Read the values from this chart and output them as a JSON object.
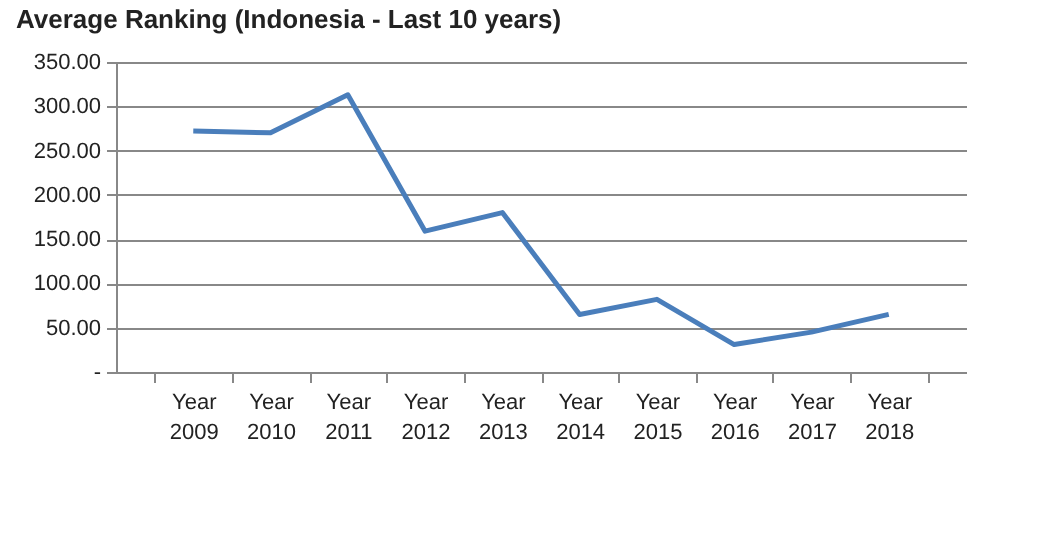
{
  "chart_data": {
    "type": "line",
    "title": "Average Ranking (Indonesia - Last 10 years)",
    "categories": [
      "Year 2009",
      "Year 2010",
      "Year 2011",
      "Year 2012",
      "Year 2013",
      "Year 2014",
      "Year 2015",
      "Year 2016",
      "Year 2017",
      "Year 2018"
    ],
    "series": [
      {
        "color": "#4a7ebb",
        "values": [
          272,
          270,
          313,
          159,
          180,
          65,
          82,
          31,
          45,
          65
        ]
      }
    ],
    "ylim": [
      0,
      350
    ],
    "yticks": [
      {
        "value": 0,
        "label": "-"
      },
      {
        "value": 50,
        "label": "50.00"
      },
      {
        "value": 100,
        "label": "100.00"
      },
      {
        "value": 150,
        "label": "150.00"
      },
      {
        "value": 200,
        "label": "200.00"
      },
      {
        "value": 250,
        "label": "250.00"
      },
      {
        "value": 300,
        "label": "300.00"
      },
      {
        "value": 350,
        "label": "350.00"
      }
    ],
    "grid": "y",
    "legend": false,
    "marker": "none",
    "line_style": "solid"
  }
}
